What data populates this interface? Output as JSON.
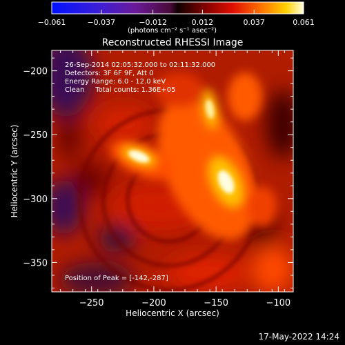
{
  "colorbar": {
    "ticks": [
      "-0.061",
      "-0.037",
      "-0.012",
      "0.012",
      "0.037",
      "0.061"
    ],
    "units_label": "(photons cm⁻² s⁻¹ asec⁻²)",
    "range": [
      -0.061,
      0.061
    ]
  },
  "info_lines": [
    "26-Sep-2014 02:05:32.000 to 02:11:32.000",
    "Detectors: 3F 6F 9F, Att 0",
    "Energy Range: 6.0 - 12.0 keV",
    "Clean     Total counts: 1.36E+05"
  ],
  "peak_text": "Position of Peak = [-142,-287]",
  "footer_date": "17-May-2022 14:24",
  "chart_data": {
    "type": "heatmap",
    "title": "Reconstructed RHESSI Image",
    "xlabel": "Heliocentric X (arcsec)",
    "ylabel": "Heliocentric Y (arcsec)",
    "xlim": [
      -282,
      -88
    ],
    "ylim": [
      -373,
      -184
    ],
    "xticks": [
      -250,
      -200,
      -150,
      -100
    ],
    "xtick_labels": [
      "−250",
      "−200",
      "−150",
      "−100"
    ],
    "yticks": [
      -200,
      -250,
      -300,
      -350
    ],
    "ytick_labels": [
      "−200",
      "−250",
      "−300",
      "−350"
    ],
    "peak": [
      -142,
      -287
    ],
    "sources": [
      {
        "x": -212,
        "y": -267,
        "value": 0.061
      },
      {
        "x": -142,
        "y": -287,
        "value": 0.061
      },
      {
        "x": -155,
        "y": -230,
        "value": 0.052
      }
    ]
  }
}
